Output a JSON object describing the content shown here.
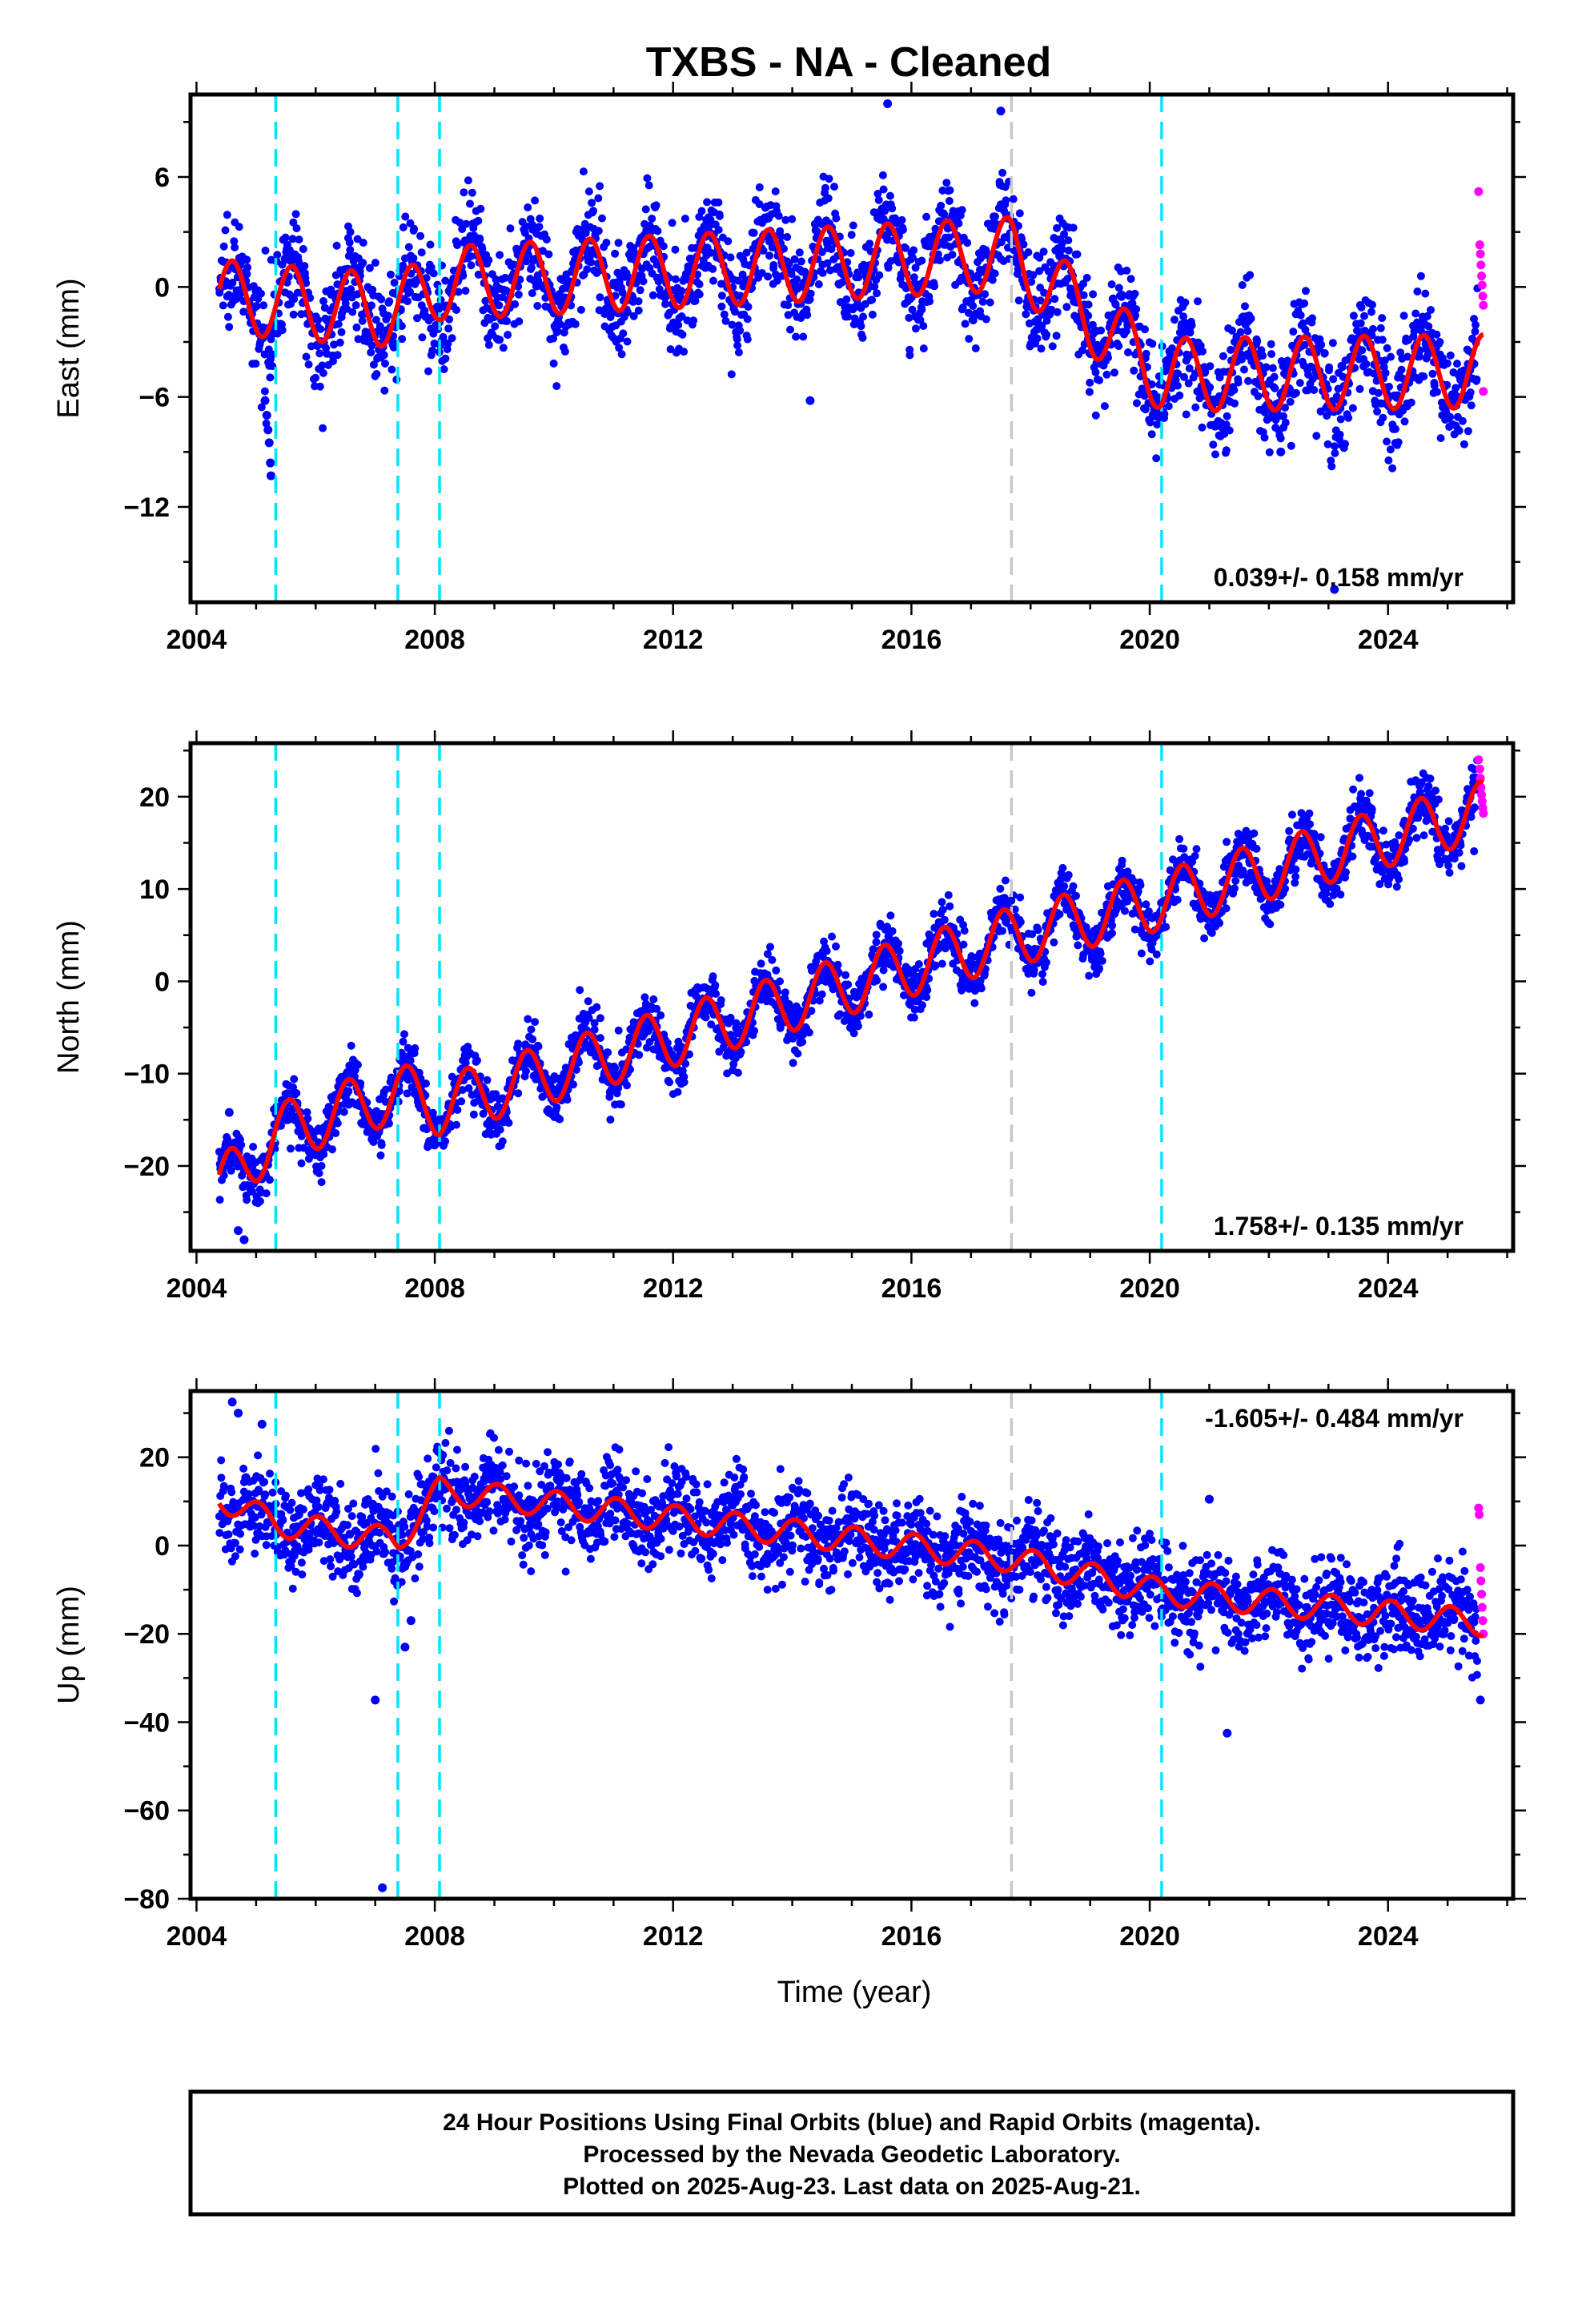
{
  "title": "TXBS  - NA - Cleaned",
  "xlabel": "Time (year)",
  "footer": {
    "lines": [
      "24 Hour Positions Using Final Orbits (blue) and Rapid Orbits (magenta).",
      "Processed by the Nevada Geodetic Laboratory.",
      "Plotted on 2025-Aug-23. Last data on 2025-Aug-21."
    ]
  },
  "colors": {
    "final": "#0000ff",
    "rapid": "#ff00ff",
    "model": "#ff0000",
    "equipment_change": "#00e5ff",
    "other_event": "#c8c8c8"
  },
  "chart_data": [
    {
      "type": "scatter",
      "ylabel": "East (mm)",
      "xlim": [
        2003.9,
        2026.1
      ],
      "ylim": [
        -17.2,
        10.5
      ],
      "xticks": [
        2004,
        2008,
        2012,
        2016,
        2020,
        2024
      ],
      "yticks": [
        6,
        0,
        -6,
        -12
      ],
      "rate_text": "0.039+/- 0.158 mm/yr",
      "rate_position": "bottom-right",
      "equipment_changes": [
        2005.33,
        2007.38,
        2008.08,
        2020.2
      ],
      "other_events": [
        2017.68
      ],
      "model_offsets": [
        {
          "x": 2004.38,
          "y": -0.5
        },
        {
          "x": 2005.33,
          "y": -0.8
        },
        {
          "x": 2007.38,
          "y": -1.3
        },
        {
          "x": 2008.08,
          "y": 0.2
        },
        {
          "x": 2017.68,
          "y": 1.8
        },
        {
          "x": 2020.2,
          "y": -4.8
        },
        {
          "x": 2025.6,
          "y": -4.6
        }
      ],
      "seasonal_amplitude": 2.0,
      "seasonal_peak_fraction": 0.6,
      "scatter_noise": 1.4,
      "final_orbit_end": 2025.5,
      "rapid_orbits": [
        {
          "x": 2025.52,
          "y": 5.2
        },
        {
          "x": 2025.54,
          "y": 2.3
        },
        {
          "x": 2025.55,
          "y": 1.8
        },
        {
          "x": 2025.56,
          "y": 1.2
        },
        {
          "x": 2025.57,
          "y": 0.6
        },
        {
          "x": 2025.58,
          "y": 0.1
        },
        {
          "x": 2025.59,
          "y": -0.5
        },
        {
          "x": 2025.6,
          "y": -1.0
        },
        {
          "x": 2025.6,
          "y": -5.7
        }
      ],
      "outliers": [
        {
          "x": 2005.15,
          "y": -6.2
        },
        {
          "x": 2005.18,
          "y": -7.0
        },
        {
          "x": 2005.2,
          "y": -7.8
        },
        {
          "x": 2005.22,
          "y": -8.5
        },
        {
          "x": 2005.24,
          "y": -9.6
        },
        {
          "x": 2005.25,
          "y": -10.3
        },
        {
          "x": 2023.1,
          "y": -16.5
        },
        {
          "x": 2022.2,
          "y": -9.0
        },
        {
          "x": 2015.6,
          "y": 10.0
        },
        {
          "x": 2017.5,
          "y": 9.6
        },
        {
          "x": 2014.3,
          "y": -6.2
        }
      ]
    },
    {
      "type": "scatter",
      "ylabel": "North (mm)",
      "xlim": [
        2003.9,
        2026.1
      ],
      "ylim": [
        -29.2,
        25.8
      ],
      "xticks": [
        2004,
        2008,
        2012,
        2016,
        2020,
        2024
      ],
      "yticks": [
        20,
        10,
        0,
        -10,
        -20
      ],
      "rate_text": "1.758+/- 0.135 mm/yr",
      "rate_position": "bottom-right",
      "equipment_changes": [
        2005.33,
        2007.38,
        2008.08,
        2020.2
      ],
      "other_events": [
        2017.68
      ],
      "model_offsets": [
        {
          "x": 2004.38,
          "y": -22.5
        },
        {
          "x": 2005.33,
          "y": -16.5
        },
        {
          "x": 2007.38,
          "y": -12.0
        },
        {
          "x": 2008.08,
          "y": -13.5
        },
        {
          "x": 2017.68,
          "y": 4.8
        },
        {
          "x": 2020.2,
          "y": 8.8
        },
        {
          "x": 2025.6,
          "y": 18.5
        }
      ],
      "seasonal_amplitude": 3.2,
      "seasonal_peak_fraction": 0.55,
      "scatter_noise": 1.5,
      "final_orbit_end": 2025.5,
      "rapid_orbits": [
        {
          "x": 2025.52,
          "y": 24.0
        },
        {
          "x": 2025.54,
          "y": 23.0
        },
        {
          "x": 2025.55,
          "y": 22.0
        },
        {
          "x": 2025.56,
          "y": 21.0
        },
        {
          "x": 2025.57,
          "y": 20.2
        },
        {
          "x": 2025.58,
          "y": 19.5
        },
        {
          "x": 2025.59,
          "y": 18.8
        },
        {
          "x": 2025.6,
          "y": 18.2
        }
      ],
      "outliers": [
        {
          "x": 2004.55,
          "y": -14.2
        },
        {
          "x": 2004.8,
          "y": -28.0
        },
        {
          "x": 2004.7,
          "y": -27.0
        }
      ]
    },
    {
      "type": "scatter",
      "ylabel": "Up (mm)",
      "xlim": [
        2003.9,
        2026.1
      ],
      "ylim": [
        -80,
        35
      ],
      "xticks": [
        2004,
        2008,
        2012,
        2016,
        2020,
        2024
      ],
      "yticks": [
        20,
        0,
        -20,
        -40,
        -60,
        -80
      ],
      "rate_text": "-1.605+/- 0.484 mm/yr",
      "rate_position": "top-right",
      "equipment_changes": [
        2005.33,
        2007.38,
        2008.08,
        2020.2
      ],
      "other_events": [
        2017.68
      ],
      "model_offsets": [
        {
          "x": 2004.38,
          "y": 11.0
        },
        {
          "x": 2005.33,
          "y": 5.0
        },
        {
          "x": 2007.38,
          "y": 1.0
        },
        {
          "x": 2008.08,
          "y": 12.5
        },
        {
          "x": 2017.68,
          "y": -3.0
        },
        {
          "x": 2020.2,
          "y": -10.5
        },
        {
          "x": 2025.6,
          "y": -17.5
        }
      ],
      "seasonal_amplitude": 3.0,
      "seasonal_peak_fraction": 0.05,
      "scatter_noise": 5.0,
      "final_orbit_end": 2025.5,
      "rapid_orbits": [
        {
          "x": 2025.52,
          "y": 8.5
        },
        {
          "x": 2025.53,
          "y": 7.0
        },
        {
          "x": 2025.55,
          "y": -5.0
        },
        {
          "x": 2025.56,
          "y": -8.0
        },
        {
          "x": 2025.57,
          "y": -11.0
        },
        {
          "x": 2025.58,
          "y": -14.0
        },
        {
          "x": 2025.59,
          "y": -17.0
        },
        {
          "x": 2025.6,
          "y": -20.0
        }
      ],
      "outliers": [
        {
          "x": 2007.12,
          "y": -77.5
        },
        {
          "x": 2007.0,
          "y": -35.0
        },
        {
          "x": 2007.5,
          "y": -23.0
        },
        {
          "x": 2007.6,
          "y": -17.0
        },
        {
          "x": 2021.3,
          "y": -42.5
        },
        {
          "x": 2025.55,
          "y": -35.0
        },
        {
          "x": 2004.6,
          "y": 32.5
        },
        {
          "x": 2004.7,
          "y": 30.0
        },
        {
          "x": 2005.1,
          "y": 27.5
        },
        {
          "x": 2021.0,
          "y": 10.5
        }
      ]
    }
  ]
}
